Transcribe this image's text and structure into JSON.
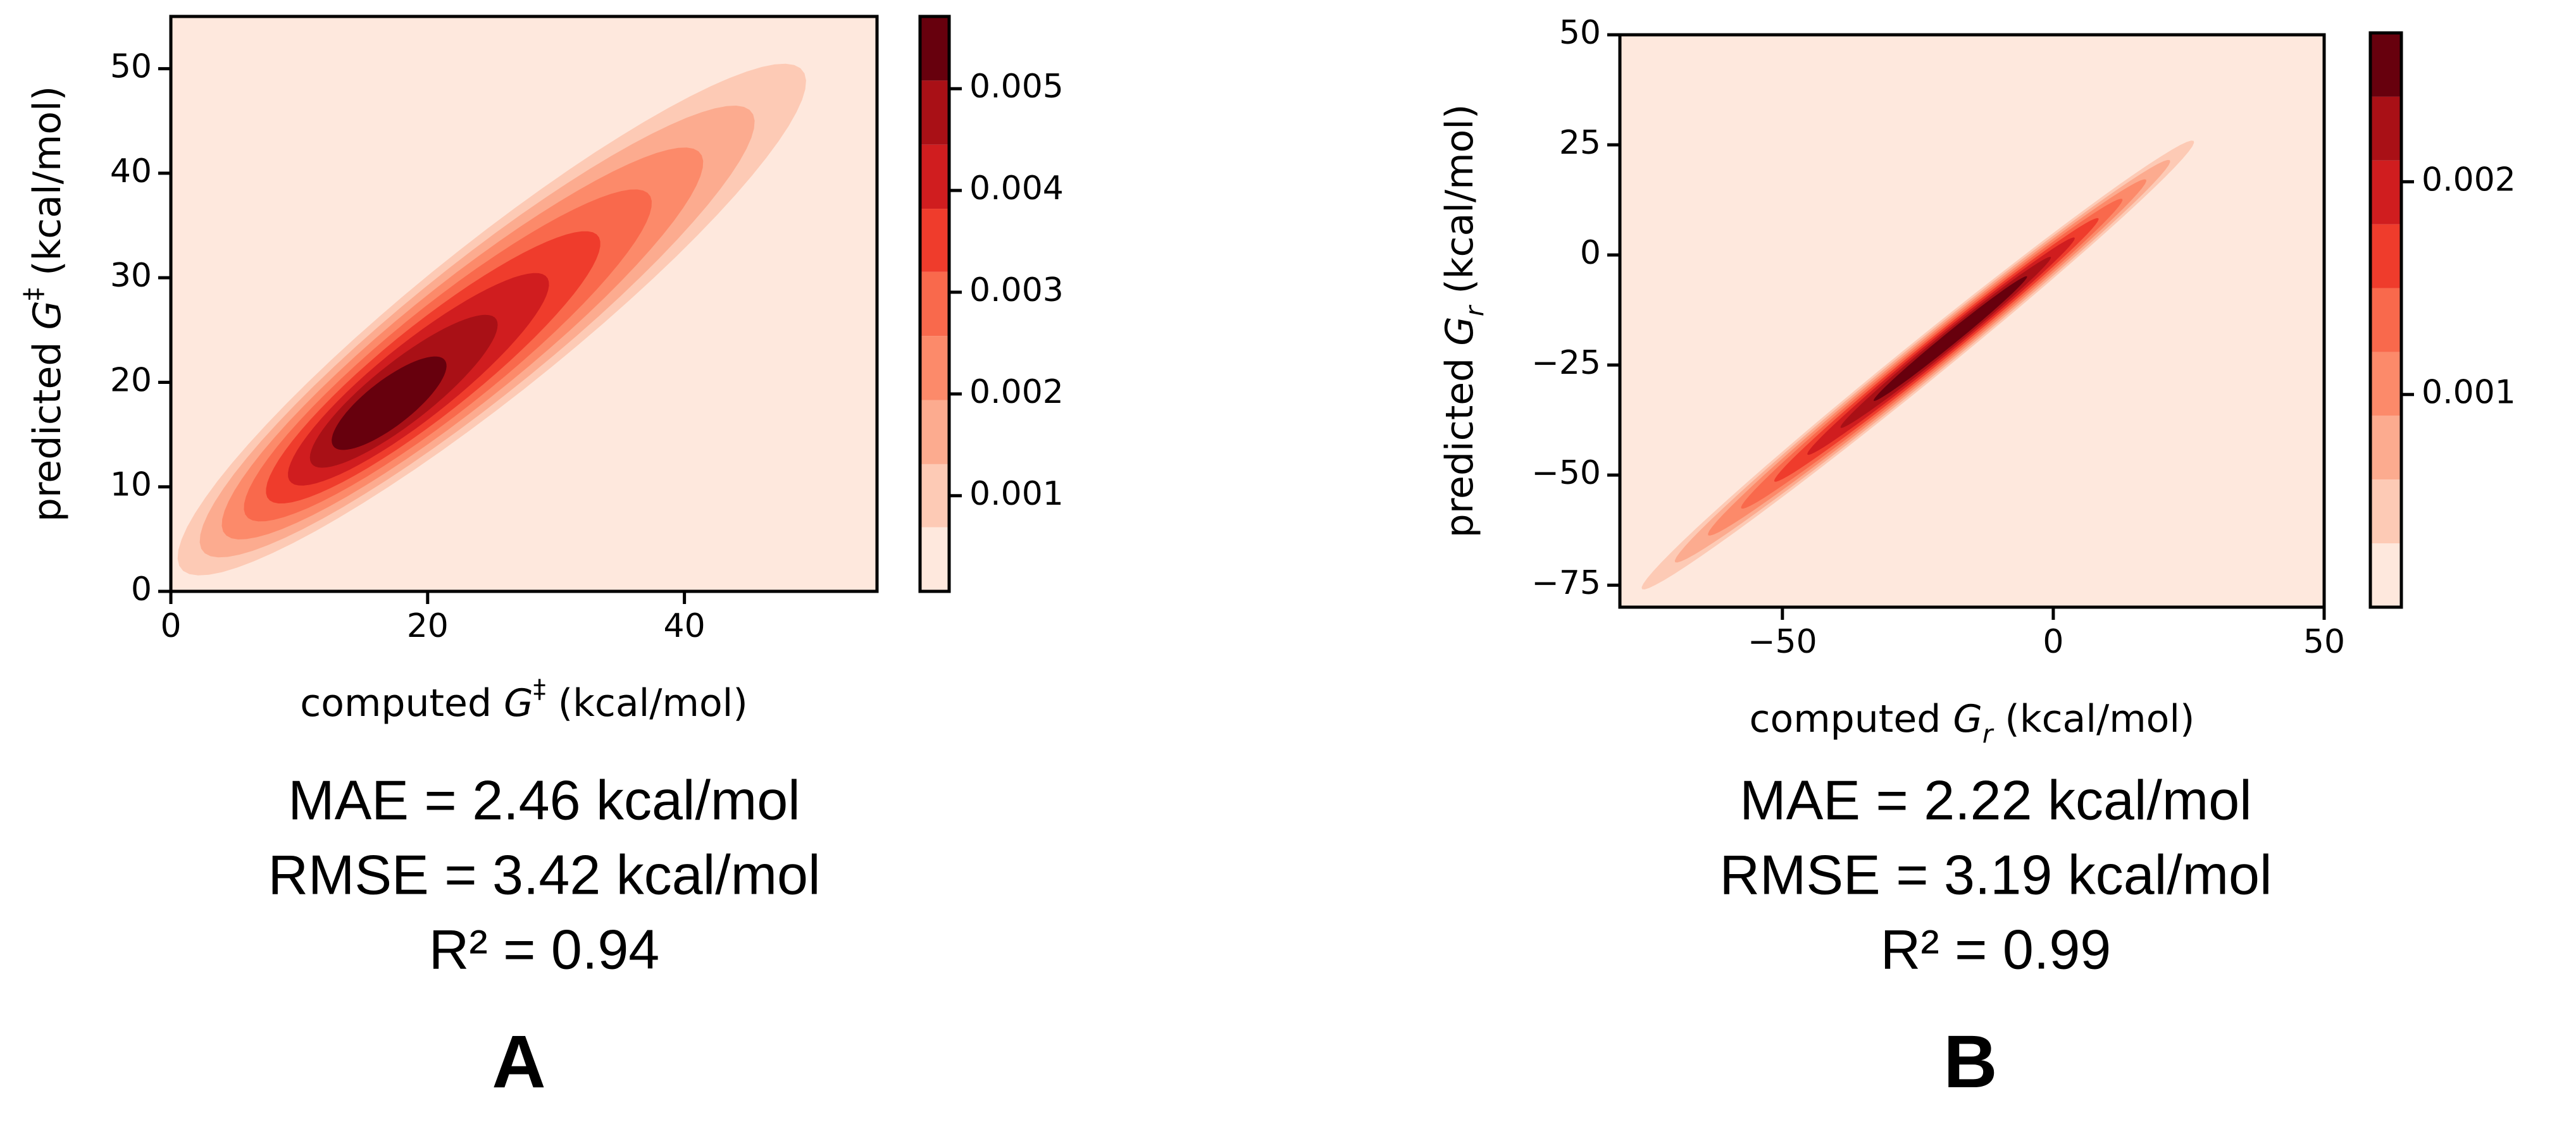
{
  "chart_data": [
    {
      "type": "contour",
      "xlabel": [
        "computed ",
        "G",
        "‡",
        " (kcal/mol)"
      ],
      "ylabel": [
        "predicted ",
        "G",
        "‡",
        " (kcal/mol)"
      ],
      "xlim": [
        0,
        55
      ],
      "ylim": [
        0,
        55
      ],
      "xticks": [
        0,
        20,
        40
      ],
      "yticks": [
        0,
        10,
        20,
        30,
        40,
        50
      ],
      "colorbar": {
        "levels": [
          6e-05,
          0.00069,
          0.00131,
          0.00194,
          0.00257,
          0.0032,
          0.00382,
          0.00445,
          0.00508,
          0.00571
        ],
        "colors": [
          "#fee8dd",
          "#fdcab5",
          "#fcab8f",
          "#fc8a6a",
          "#f9694c",
          "#ef3c2c",
          "#d01d1f",
          "#a91016",
          "#67000d"
        ],
        "ticks": [
          0.001,
          0.002,
          0.003,
          0.004,
          0.005
        ]
      },
      "annotations": [
        "MAE = 2.46 kcal/mol",
        "RMSE = 3.42 kcal/mol",
        "R² = 0.94"
      ],
      "panel": "A"
    },
    {
      "type": "contour",
      "xlabel": [
        "computed ",
        "G",
        "r",
        " (kcal/mol)"
      ],
      "ylabel": [
        "predicted ",
        "G",
        "r",
        " (kcal/mol)"
      ],
      "xlim": [
        -80,
        50
      ],
      "ylim": [
        -80,
        50
      ],
      "xticks": [
        {
          "value": -50,
          "label": "−50"
        },
        0,
        50
      ],
      "yticks": [
        {
          "value": -75,
          "label": "−75"
        },
        {
          "value": -50,
          "label": "−50"
        },
        {
          "value": -25,
          "label": "−25"
        },
        0,
        25,
        50
      ],
      "colorbar": {
        "levels": [
          0,
          0.0003,
          0.0006,
          0.0009,
          0.0012,
          0.0015,
          0.0018,
          0.0021,
          0.0024,
          0.0027
        ],
        "colors": [
          "#fee8dd",
          "#fdcab5",
          "#fcab8f",
          "#fc8a6a",
          "#f9694c",
          "#ef3c2c",
          "#d01d1f",
          "#a91016",
          "#67000d"
        ],
        "ticks": [
          0.001,
          0.002
        ]
      },
      "annotations": [
        "MAE = 2.22 kcal/mol",
        "RMSE = 3.19 kcal/mol",
        "R² = 0.99"
      ],
      "panel": "B"
    }
  ]
}
